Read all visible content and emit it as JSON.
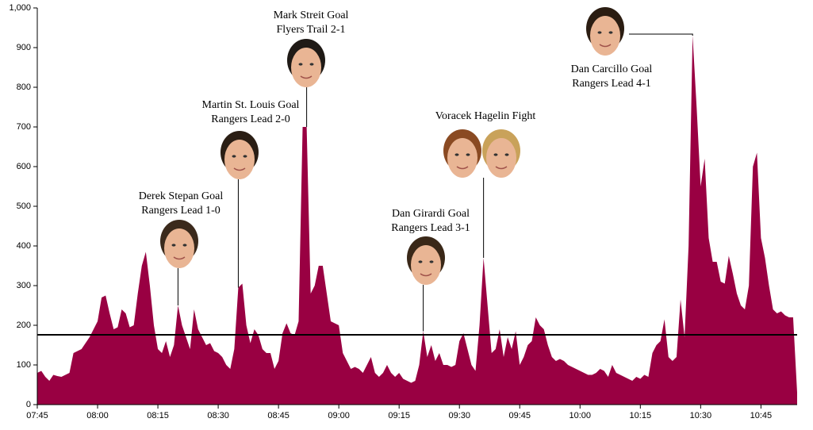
{
  "chart_data": {
    "type": "area",
    "x": [
      "07:45",
      "07:46",
      "07:47",
      "07:48",
      "07:49",
      "07:50",
      "07:51",
      "07:52",
      "07:53",
      "07:54",
      "07:55",
      "07:56",
      "07:57",
      "07:58",
      "07:59",
      "08:00",
      "08:01",
      "08:02",
      "08:03",
      "08:04",
      "08:05",
      "08:06",
      "08:07",
      "08:08",
      "08:09",
      "08:10",
      "08:11",
      "08:12",
      "08:13",
      "08:14",
      "08:15",
      "08:16",
      "08:17",
      "08:18",
      "08:19",
      "08:20",
      "08:21",
      "08:22",
      "08:23",
      "08:24",
      "08:25",
      "08:26",
      "08:27",
      "08:28",
      "08:29",
      "08:30",
      "08:31",
      "08:32",
      "08:33",
      "08:34",
      "08:35",
      "08:36",
      "08:37",
      "08:38",
      "08:39",
      "08:40",
      "08:41",
      "08:42",
      "08:43",
      "08:44",
      "08:45",
      "08:46",
      "08:47",
      "08:48",
      "08:49",
      "08:50",
      "08:51",
      "08:52",
      "08:53",
      "08:54",
      "08:55",
      "08:56",
      "08:57",
      "08:58",
      "08:59",
      "09:00",
      "09:01",
      "09:02",
      "09:03",
      "09:04",
      "09:05",
      "09:06",
      "09:07",
      "09:08",
      "09:09",
      "09:10",
      "09:11",
      "09:12",
      "09:13",
      "09:14",
      "09:15",
      "09:16",
      "09:17",
      "09:18",
      "09:19",
      "09:20",
      "09:21",
      "09:22",
      "09:23",
      "09:24",
      "09:25",
      "09:26",
      "09:27",
      "09:28",
      "09:29",
      "09:30",
      "09:31",
      "09:32",
      "09:33",
      "09:34",
      "09:35",
      "09:36",
      "09:37",
      "09:38",
      "09:39",
      "09:40",
      "09:41",
      "09:42",
      "09:43",
      "09:44",
      "09:45",
      "09:46",
      "09:47",
      "09:48",
      "09:49",
      "09:50",
      "09:51",
      "09:52",
      "09:53",
      "09:54",
      "09:55",
      "09:56",
      "09:57",
      "09:58",
      "09:59",
      "10:00",
      "10:01",
      "10:02",
      "10:03",
      "10:04",
      "10:05",
      "10:06",
      "10:07",
      "10:08",
      "10:09",
      "10:10",
      "10:11",
      "10:12",
      "10:13",
      "10:14",
      "10:15",
      "10:16",
      "10:17",
      "10:18",
      "10:19",
      "10:20",
      "10:21",
      "10:22",
      "10:23",
      "10:24",
      "10:25",
      "10:26",
      "10:27",
      "10:28",
      "10:29",
      "10:30",
      "10:31",
      "10:32",
      "10:33",
      "10:34",
      "10:35",
      "10:36",
      "10:37",
      "10:38",
      "10:39",
      "10:40",
      "10:41",
      "10:42",
      "10:43",
      "10:44",
      "10:45",
      "10:46",
      "10:47",
      "10:48",
      "10:49",
      "10:50",
      "10:51",
      "10:52",
      "10:53",
      "10:54"
    ],
    "values": [
      80,
      85,
      70,
      60,
      75,
      72,
      70,
      75,
      80,
      130,
      135,
      140,
      155,
      170,
      190,
      210,
      270,
      275,
      230,
      190,
      195,
      240,
      230,
      195,
      200,
      280,
      350,
      385,
      300,
      200,
      140,
      130,
      160,
      120,
      150,
      250,
      200,
      170,
      140,
      240,
      190,
      170,
      150,
      155,
      135,
      130,
      120,
      100,
      90,
      140,
      295,
      305,
      200,
      155,
      190,
      175,
      140,
      130,
      130,
      90,
      110,
      180,
      205,
      180,
      175,
      210,
      700,
      700,
      280,
      300,
      350,
      350,
      280,
      210,
      205,
      200,
      130,
      110,
      90,
      95,
      90,
      80,
      100,
      120,
      80,
      70,
      80,
      100,
      80,
      70,
      80,
      65,
      60,
      55,
      60,
      100,
      185,
      120,
      150,
      110,
      130,
      100,
      100,
      95,
      100,
      160,
      180,
      140,
      100,
      85,
      200,
      370,
      250,
      130,
      140,
      190,
      120,
      170,
      140,
      185,
      100,
      120,
      150,
      160,
      220,
      200,
      190,
      150,
      120,
      110,
      115,
      110,
      100,
      95,
      90,
      85,
      80,
      75,
      75,
      80,
      90,
      85,
      70,
      100,
      80,
      75,
      70,
      65,
      60,
      70,
      65,
      75,
      70,
      130,
      150,
      160,
      215,
      120,
      110,
      120,
      265,
      170,
      400,
      930,
      750,
      550,
      620,
      420,
      360,
      360,
      310,
      305,
      375,
      330,
      280,
      250,
      240,
      300,
      600,
      635,
      420,
      370,
      300,
      240,
      230,
      235,
      225,
      220,
      220,
      30
    ],
    "color": "#990042",
    "xlim": [
      "07:45",
      "10:54"
    ],
    "xticks": [
      "07:45",
      "08:00",
      "08:15",
      "08:30",
      "08:45",
      "09:00",
      "09:15",
      "09:30",
      "09:45",
      "10:00",
      "10:15",
      "10:30",
      "10:45"
    ],
    "ylim": [
      0,
      1000
    ],
    "yticks": [
      0,
      100,
      200,
      300,
      400,
      500,
      600,
      700,
      800,
      900,
      {
        "value": 1000,
        "label": "1,000"
      }
    ],
    "hline": 176,
    "annotations": [
      {
        "x": "08:20",
        "lines": [
          "Derek Stepan Goal",
          "Rangers Lead 1-0"
        ]
      },
      {
        "x": "08:35",
        "lines": [
          "Martin St. Louis Goal",
          "Rangers Lead 2-0"
        ]
      },
      {
        "x": "08:52",
        "lines": [
          "Mark Streit Goal",
          "Flyers Trail 2-1"
        ]
      },
      {
        "x": "09:21",
        "lines": [
          "Dan Girardi Goal",
          "Rangers Lead 3-1"
        ]
      },
      {
        "x": "09:36",
        "lines": [
          "Voracek Hagelin Fight"
        ]
      },
      {
        "x": "10:28",
        "lines": [
          "Dan Carcillo Goal",
          "Rangers Lead 4-1"
        ]
      }
    ]
  }
}
